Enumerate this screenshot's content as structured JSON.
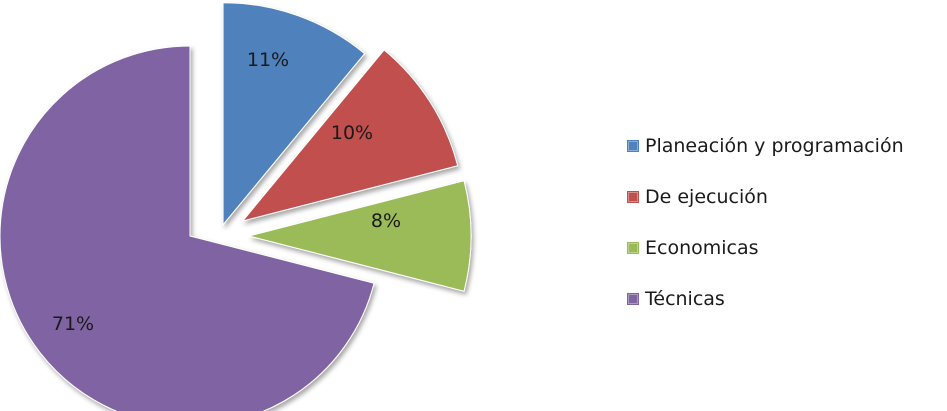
{
  "chart_data": {
    "type": "pie",
    "exploded": true,
    "start_angle_deg": 0,
    "direction": "clockwise",
    "legend_position": "right",
    "slices": [
      {
        "label": "Planeación y programación",
        "value": 11,
        "display": "11%",
        "color": "#4f81bd"
      },
      {
        "label": "De ejecución",
        "value": 10,
        "display": "10%",
        "color": "#c0504d"
      },
      {
        "label": "Economicas",
        "value": 8,
        "display": "8%",
        "color": "#9bbb59"
      },
      {
        "label": "Técnicas",
        "value": 71,
        "display": "71%",
        "color": "#8064a2"
      }
    ]
  }
}
